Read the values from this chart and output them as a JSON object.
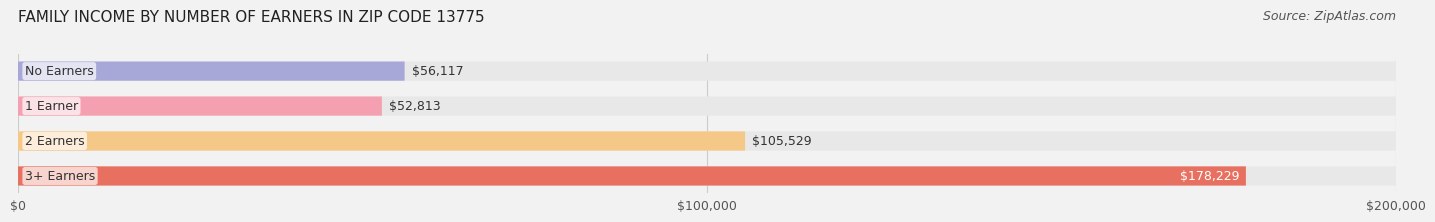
{
  "title": "FAMILY INCOME BY NUMBER OF EARNERS IN ZIP CODE 13775",
  "source": "Source: ZipAtlas.com",
  "categories": [
    "No Earners",
    "1 Earner",
    "2 Earners",
    "3+ Earners"
  ],
  "values": [
    56117,
    52813,
    105529,
    178229
  ],
  "bar_colors": [
    "#a8a8d8",
    "#f4a0b0",
    "#f5c887",
    "#e87060"
  ],
  "bar_edge_colors": [
    "#9090c8",
    "#e888a0",
    "#e0b060",
    "#d85848"
  ],
  "label_colors": [
    "#333333",
    "#333333",
    "#333333",
    "#ffffff"
  ],
  "xlim": [
    0,
    200000
  ],
  "xtick_values": [
    0,
    100000,
    200000
  ],
  "xtick_labels": [
    "$0",
    "$100,000",
    "$200,000"
  ],
  "background_color": "#f2f2f2",
  "bar_background_color": "#e8e8e8",
  "title_fontsize": 11,
  "source_fontsize": 9,
  "label_fontsize": 9,
  "category_fontsize": 9,
  "bar_height": 0.55,
  "fig_width": 14.06,
  "fig_height": 2.33
}
